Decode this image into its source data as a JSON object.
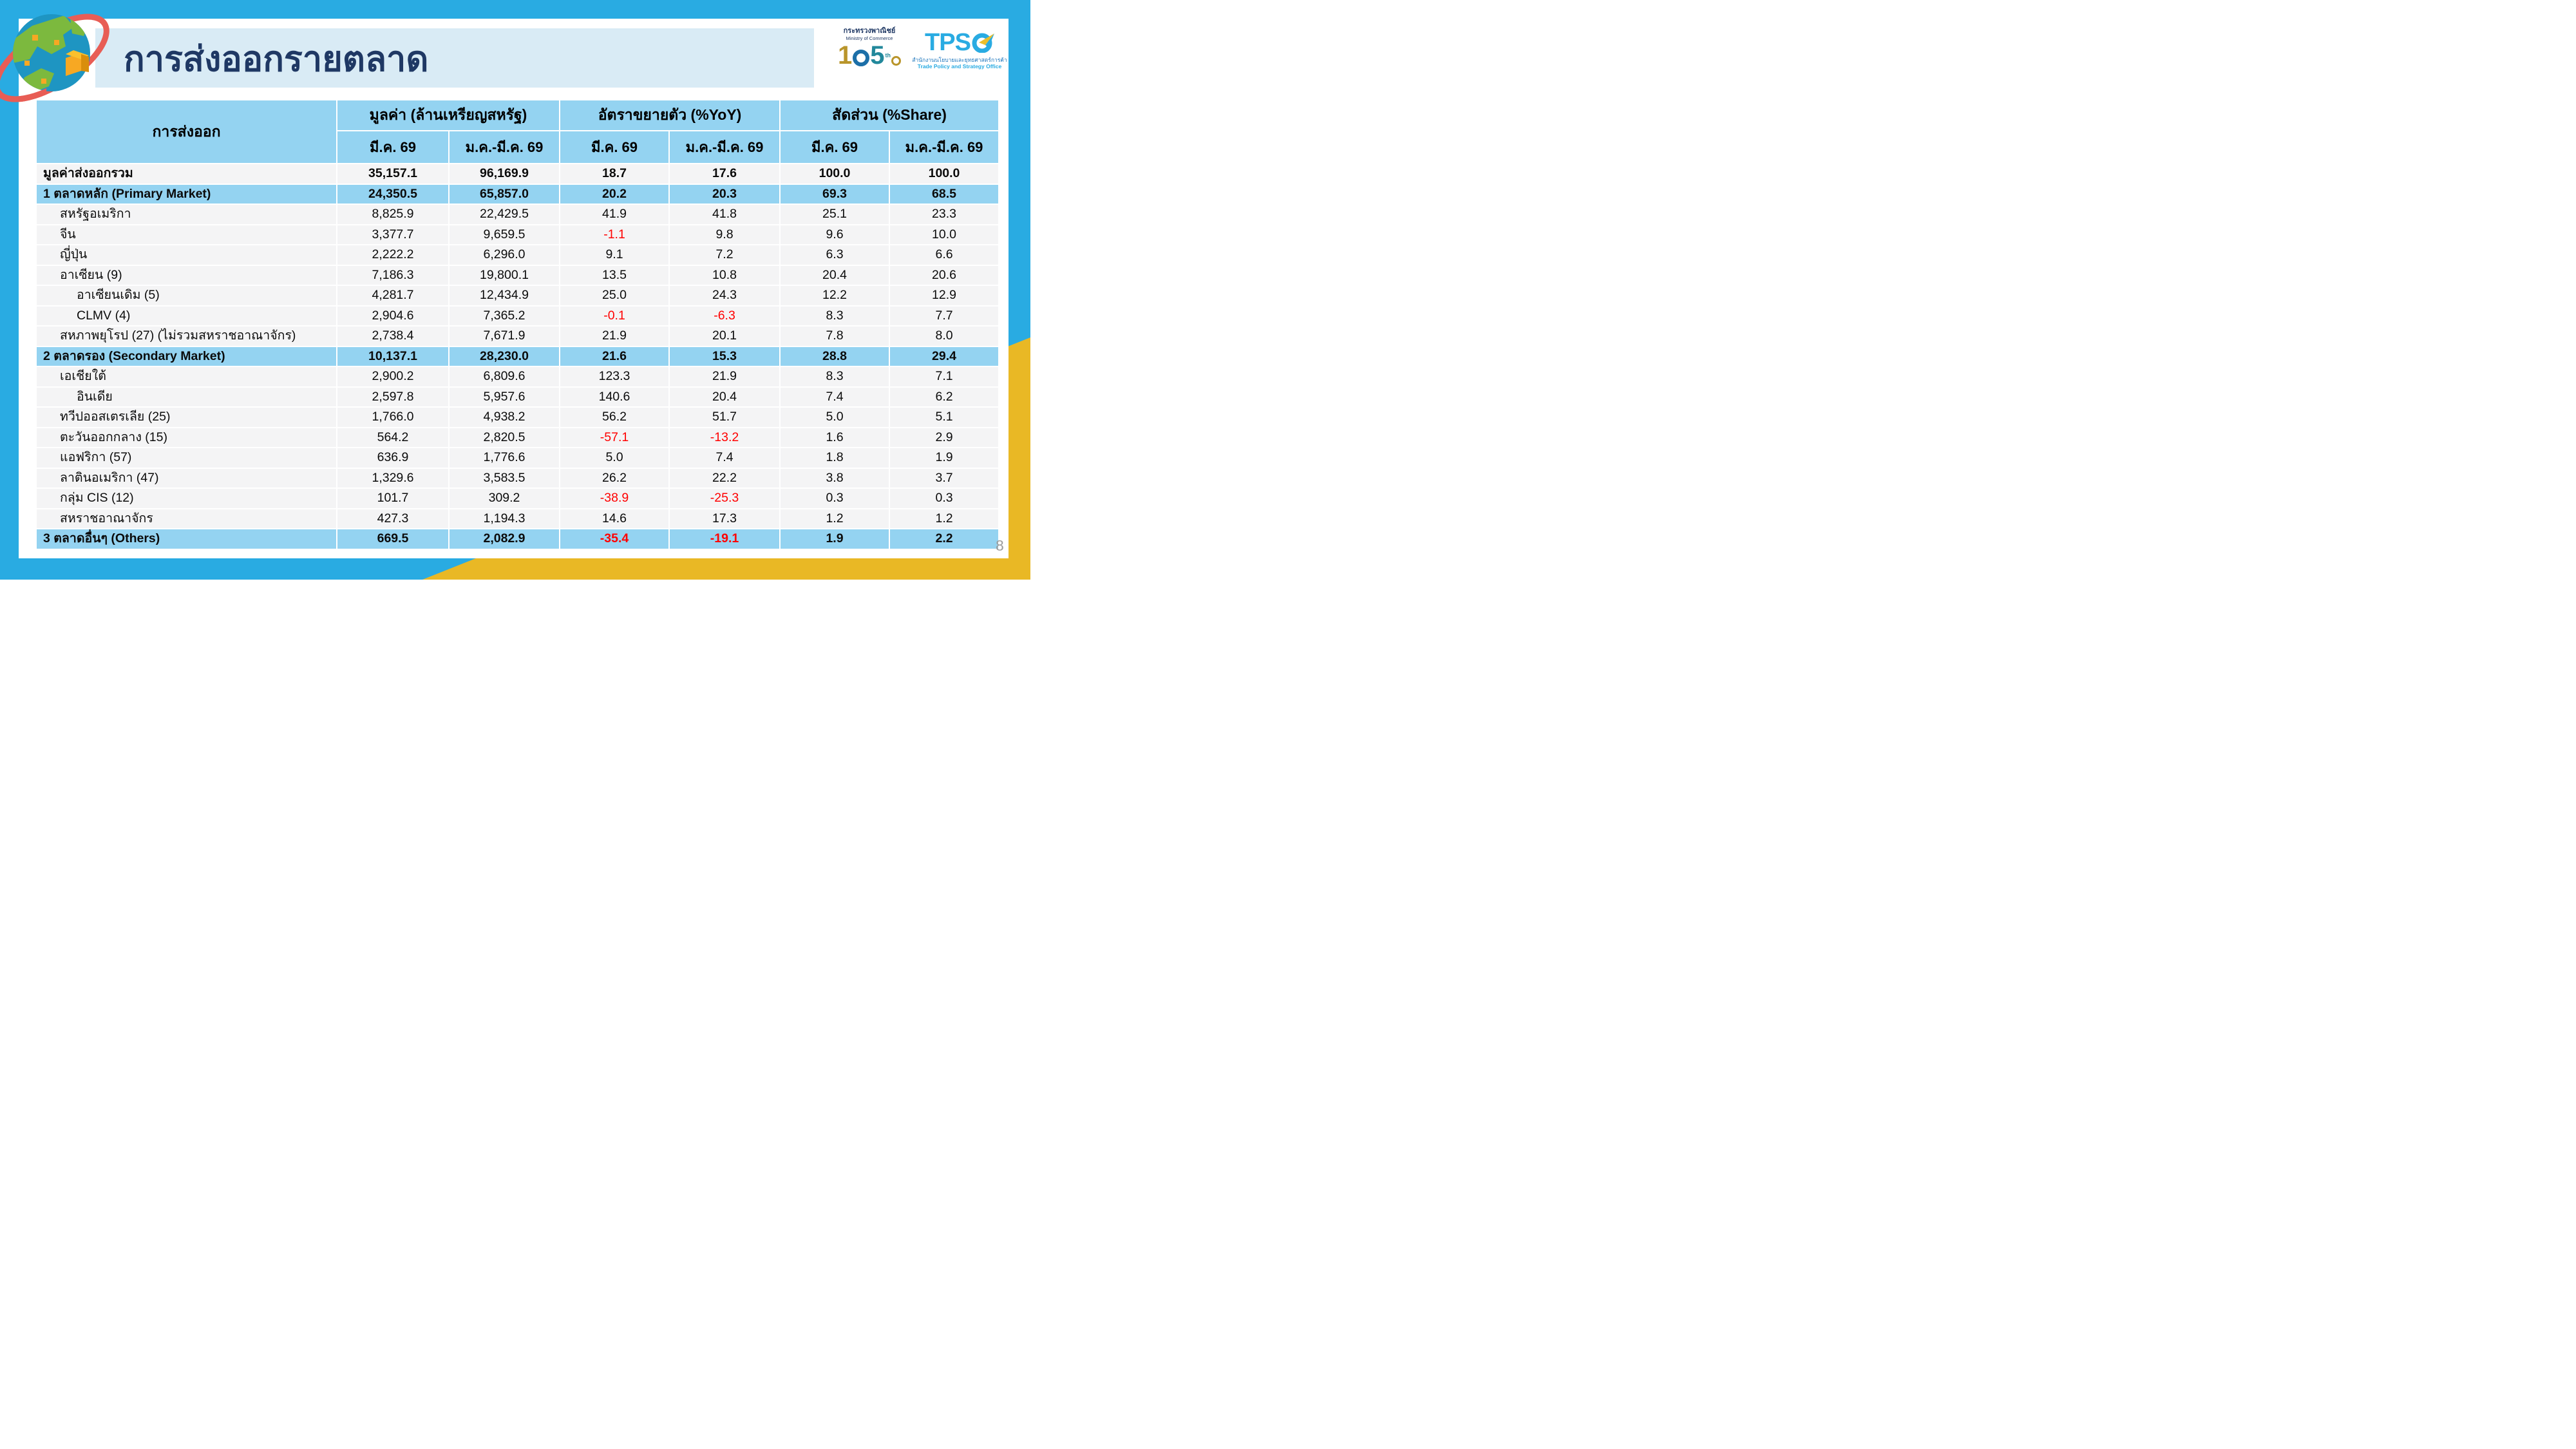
{
  "slide": {
    "title": "การส่งออกรายตลาด",
    "page_number": "8",
    "colors": {
      "frame_blue": "#29ABE2",
      "banner_blue": "#D9EBF5",
      "title_navy": "#1F3864",
      "table_header_blue": "#94D3F1",
      "row_gray": "#F4F4F5",
      "negative_red": "#FF0000",
      "band_yellow": "#E9B825",
      "page_number_gray": "#9C9C9C"
    }
  },
  "logos": {
    "moc": {
      "thai": "กระทรวงพาณิชย์",
      "eng": "Ministry of Commerce",
      "mark_1": "1",
      "mark_5": "5",
      "mark_suffix": "th"
    },
    "tpso": {
      "abbr": "TPS",
      "thai": "สำนักงานนโยบายและยุทธศาสตร์การค้า",
      "eng": "Trade Policy and Strategy Office"
    }
  },
  "table": {
    "col_header": "การส่งออก",
    "groups": [
      {
        "label": "มูลค่า (ล้านเหรียญสหรัฐ)"
      },
      {
        "label": "อัตราขยายตัว (%YoY)"
      },
      {
        "label": "สัดส่วน (%Share)"
      }
    ],
    "subheaders": [
      "มี.ค. 69",
      "ม.ค.-มี.ค. 69",
      "มี.ค. 69",
      "ม.ค.-มี.ค. 69",
      "มี.ค. 69",
      "ม.ค.-มี.ค. 69"
    ],
    "rows": [
      {
        "label": "มูลค่าส่งออกรวม",
        "type": "total",
        "indent": 0,
        "values": [
          "35,157.1",
          "96,169.9",
          "18.7",
          "17.6",
          "100.0",
          "100.0"
        ]
      },
      {
        "label": "1 ตลาดหลัก (Primary Market)",
        "type": "section",
        "indent": 0,
        "values": [
          "24,350.5",
          "65,857.0",
          "20.2",
          "20.3",
          "69.3",
          "68.5"
        ]
      },
      {
        "label": "สหรัฐอเมริกา",
        "type": "data",
        "indent": 1,
        "values": [
          "8,825.9",
          "22,429.5",
          "41.9",
          "41.8",
          "25.1",
          "23.3"
        ]
      },
      {
        "label": "จีน",
        "type": "data",
        "indent": 1,
        "values": [
          "3,377.7",
          "9,659.5",
          "-1.1",
          "9.8",
          "9.6",
          "10.0"
        ]
      },
      {
        "label": "ญี่ปุ่น",
        "type": "data",
        "indent": 1,
        "values": [
          "2,222.2",
          "6,296.0",
          "9.1",
          "7.2",
          "6.3",
          "6.6"
        ]
      },
      {
        "label": "อาเซียน (9)",
        "type": "data",
        "indent": 1,
        "values": [
          "7,186.3",
          "19,800.1",
          "13.5",
          "10.8",
          "20.4",
          "20.6"
        ]
      },
      {
        "label": "อาเซียนเดิม (5)",
        "type": "data",
        "indent": 2,
        "values": [
          "4,281.7",
          "12,434.9",
          "25.0",
          "24.3",
          "12.2",
          "12.9"
        ]
      },
      {
        "label": "CLMV (4)",
        "type": "data",
        "indent": 2,
        "values": [
          "2,904.6",
          "7,365.2",
          "-0.1",
          "-6.3",
          "8.3",
          "7.7"
        ]
      },
      {
        "label": "สหภาพยุโรป (27) (ไม่รวมสหราชอาณาจักร)",
        "type": "data",
        "indent": 1,
        "values": [
          "2,738.4",
          "7,671.9",
          "21.9",
          "20.1",
          "7.8",
          "8.0"
        ]
      },
      {
        "label": "2 ตลาดรอง (Secondary Market)",
        "type": "section",
        "indent": 0,
        "values": [
          "10,137.1",
          "28,230.0",
          "21.6",
          "15.3",
          "28.8",
          "29.4"
        ]
      },
      {
        "label": "เอเชียใต้",
        "type": "data",
        "indent": 1,
        "values": [
          "2,900.2",
          "6,809.6",
          "123.3",
          "21.9",
          "8.3",
          "7.1"
        ]
      },
      {
        "label": "อินเดีย",
        "type": "data",
        "indent": 2,
        "values": [
          "2,597.8",
          "5,957.6",
          "140.6",
          "20.4",
          "7.4",
          "6.2"
        ]
      },
      {
        "label": "ทวีปออสเตรเลีย (25)",
        "type": "data",
        "indent": 1,
        "values": [
          "1,766.0",
          "4,938.2",
          "56.2",
          "51.7",
          "5.0",
          "5.1"
        ]
      },
      {
        "label": "ตะวันออกกลาง (15)",
        "type": "data",
        "indent": 1,
        "values": [
          "564.2",
          "2,820.5",
          "-57.1",
          "-13.2",
          "1.6",
          "2.9"
        ]
      },
      {
        "label": "แอฟริกา (57)",
        "type": "data",
        "indent": 1,
        "values": [
          "636.9",
          "1,776.6",
          "5.0",
          "7.4",
          "1.8",
          "1.9"
        ]
      },
      {
        "label": "ลาตินอเมริกา (47)",
        "type": "data",
        "indent": 1,
        "values": [
          "1,329.6",
          "3,583.5",
          "26.2",
          "22.2",
          "3.8",
          "3.7"
        ]
      },
      {
        "label": "กลุ่ม CIS (12)",
        "type": "data",
        "indent": 1,
        "values": [
          "101.7",
          "309.2",
          "-38.9",
          "-25.3",
          "0.3",
          "0.3"
        ]
      },
      {
        "label": "สหราชอาณาจักร",
        "type": "data",
        "indent": 1,
        "values": [
          "427.3",
          "1,194.3",
          "14.6",
          "17.3",
          "1.2",
          "1.2"
        ]
      },
      {
        "label": "3 ตลาดอื่นๆ (Others)",
        "type": "section",
        "indent": 0,
        "values": [
          "669.5",
          "2,082.9",
          "-35.4",
          "-19.1",
          "1.9",
          "2.2"
        ]
      }
    ]
  }
}
